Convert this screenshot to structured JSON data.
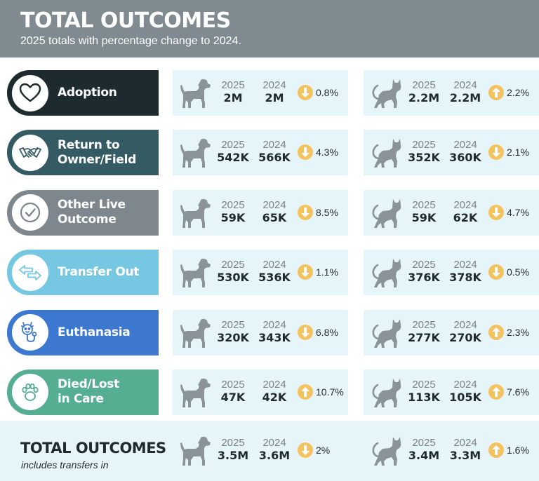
{
  "header": {
    "title": "TOTAL OUTCOMES",
    "subtitle": "2025 totals with percentage change to 2024."
  },
  "years": {
    "current": "2025",
    "previous": "2024"
  },
  "colors": {
    "header_bg": "#808a91",
    "stat_bg": "#e6f5f9",
    "arrow": "#f4c25f"
  },
  "rows": [
    {
      "label": "Adoption",
      "icon": "heart-icon",
      "color": "#1d2a2e",
      "dog": {
        "v2025": "2M",
        "v2024": "2M",
        "direction": "down",
        "pct": "0.8%"
      },
      "cat": {
        "v2025": "2.2M",
        "v2024": "2.2M",
        "direction": "up",
        "pct": "2.2%"
      }
    },
    {
      "label": "Return to\nOwner/Field",
      "icon": "handshake-icon",
      "color": "#345a63",
      "dog": {
        "v2025": "542K",
        "v2024": "566K",
        "direction": "down",
        "pct": "4.3%"
      },
      "cat": {
        "v2025": "352K",
        "v2024": "360K",
        "direction": "down",
        "pct": "2.1%"
      }
    },
    {
      "label": "Other Live\nOutcome",
      "icon": "checkmark-icon",
      "color": "#7e878d",
      "dog": {
        "v2025": "59K",
        "v2024": "65K",
        "direction": "down",
        "pct": "8.5%"
      },
      "cat": {
        "v2025": "59K",
        "v2024": "62K",
        "direction": "down",
        "pct": "4.7%"
      }
    },
    {
      "label": "Transfer Out",
      "icon": "transfer-arrows-icon",
      "color": "#76c8e2",
      "dog": {
        "v2025": "530K",
        "v2024": "536K",
        "direction": "down",
        "pct": "1.1%"
      },
      "cat": {
        "v2025": "376K",
        "v2024": "378K",
        "direction": "down",
        "pct": "0.5%"
      }
    },
    {
      "label": "Euthanasia",
      "icon": "stethoscope-icon",
      "color": "#3c78d0",
      "dog": {
        "v2025": "320K",
        "v2024": "343K",
        "direction": "down",
        "pct": "6.8%"
      },
      "cat": {
        "v2025": "277K",
        "v2024": "270K",
        "direction": "up",
        "pct": "2.3%"
      }
    },
    {
      "label": "Died/Lost\nin Care",
      "icon": "paw-icon",
      "color": "#55ad92",
      "dog": {
        "v2025": "47K",
        "v2024": "42K",
        "direction": "up",
        "pct": "10.7%"
      },
      "cat": {
        "v2025": "113K",
        "v2024": "105K",
        "direction": "up",
        "pct": "7.6%"
      }
    }
  ],
  "total": {
    "title": "TOTAL OUTCOMES",
    "subtitle": "includes transfers in",
    "dog": {
      "v2025": "3.5M",
      "v2024": "3.6M",
      "direction": "down",
      "pct": "2%"
    },
    "cat": {
      "v2025": "3.4M",
      "v2024": "3.3M",
      "direction": "up",
      "pct": "1.6%"
    }
  }
}
